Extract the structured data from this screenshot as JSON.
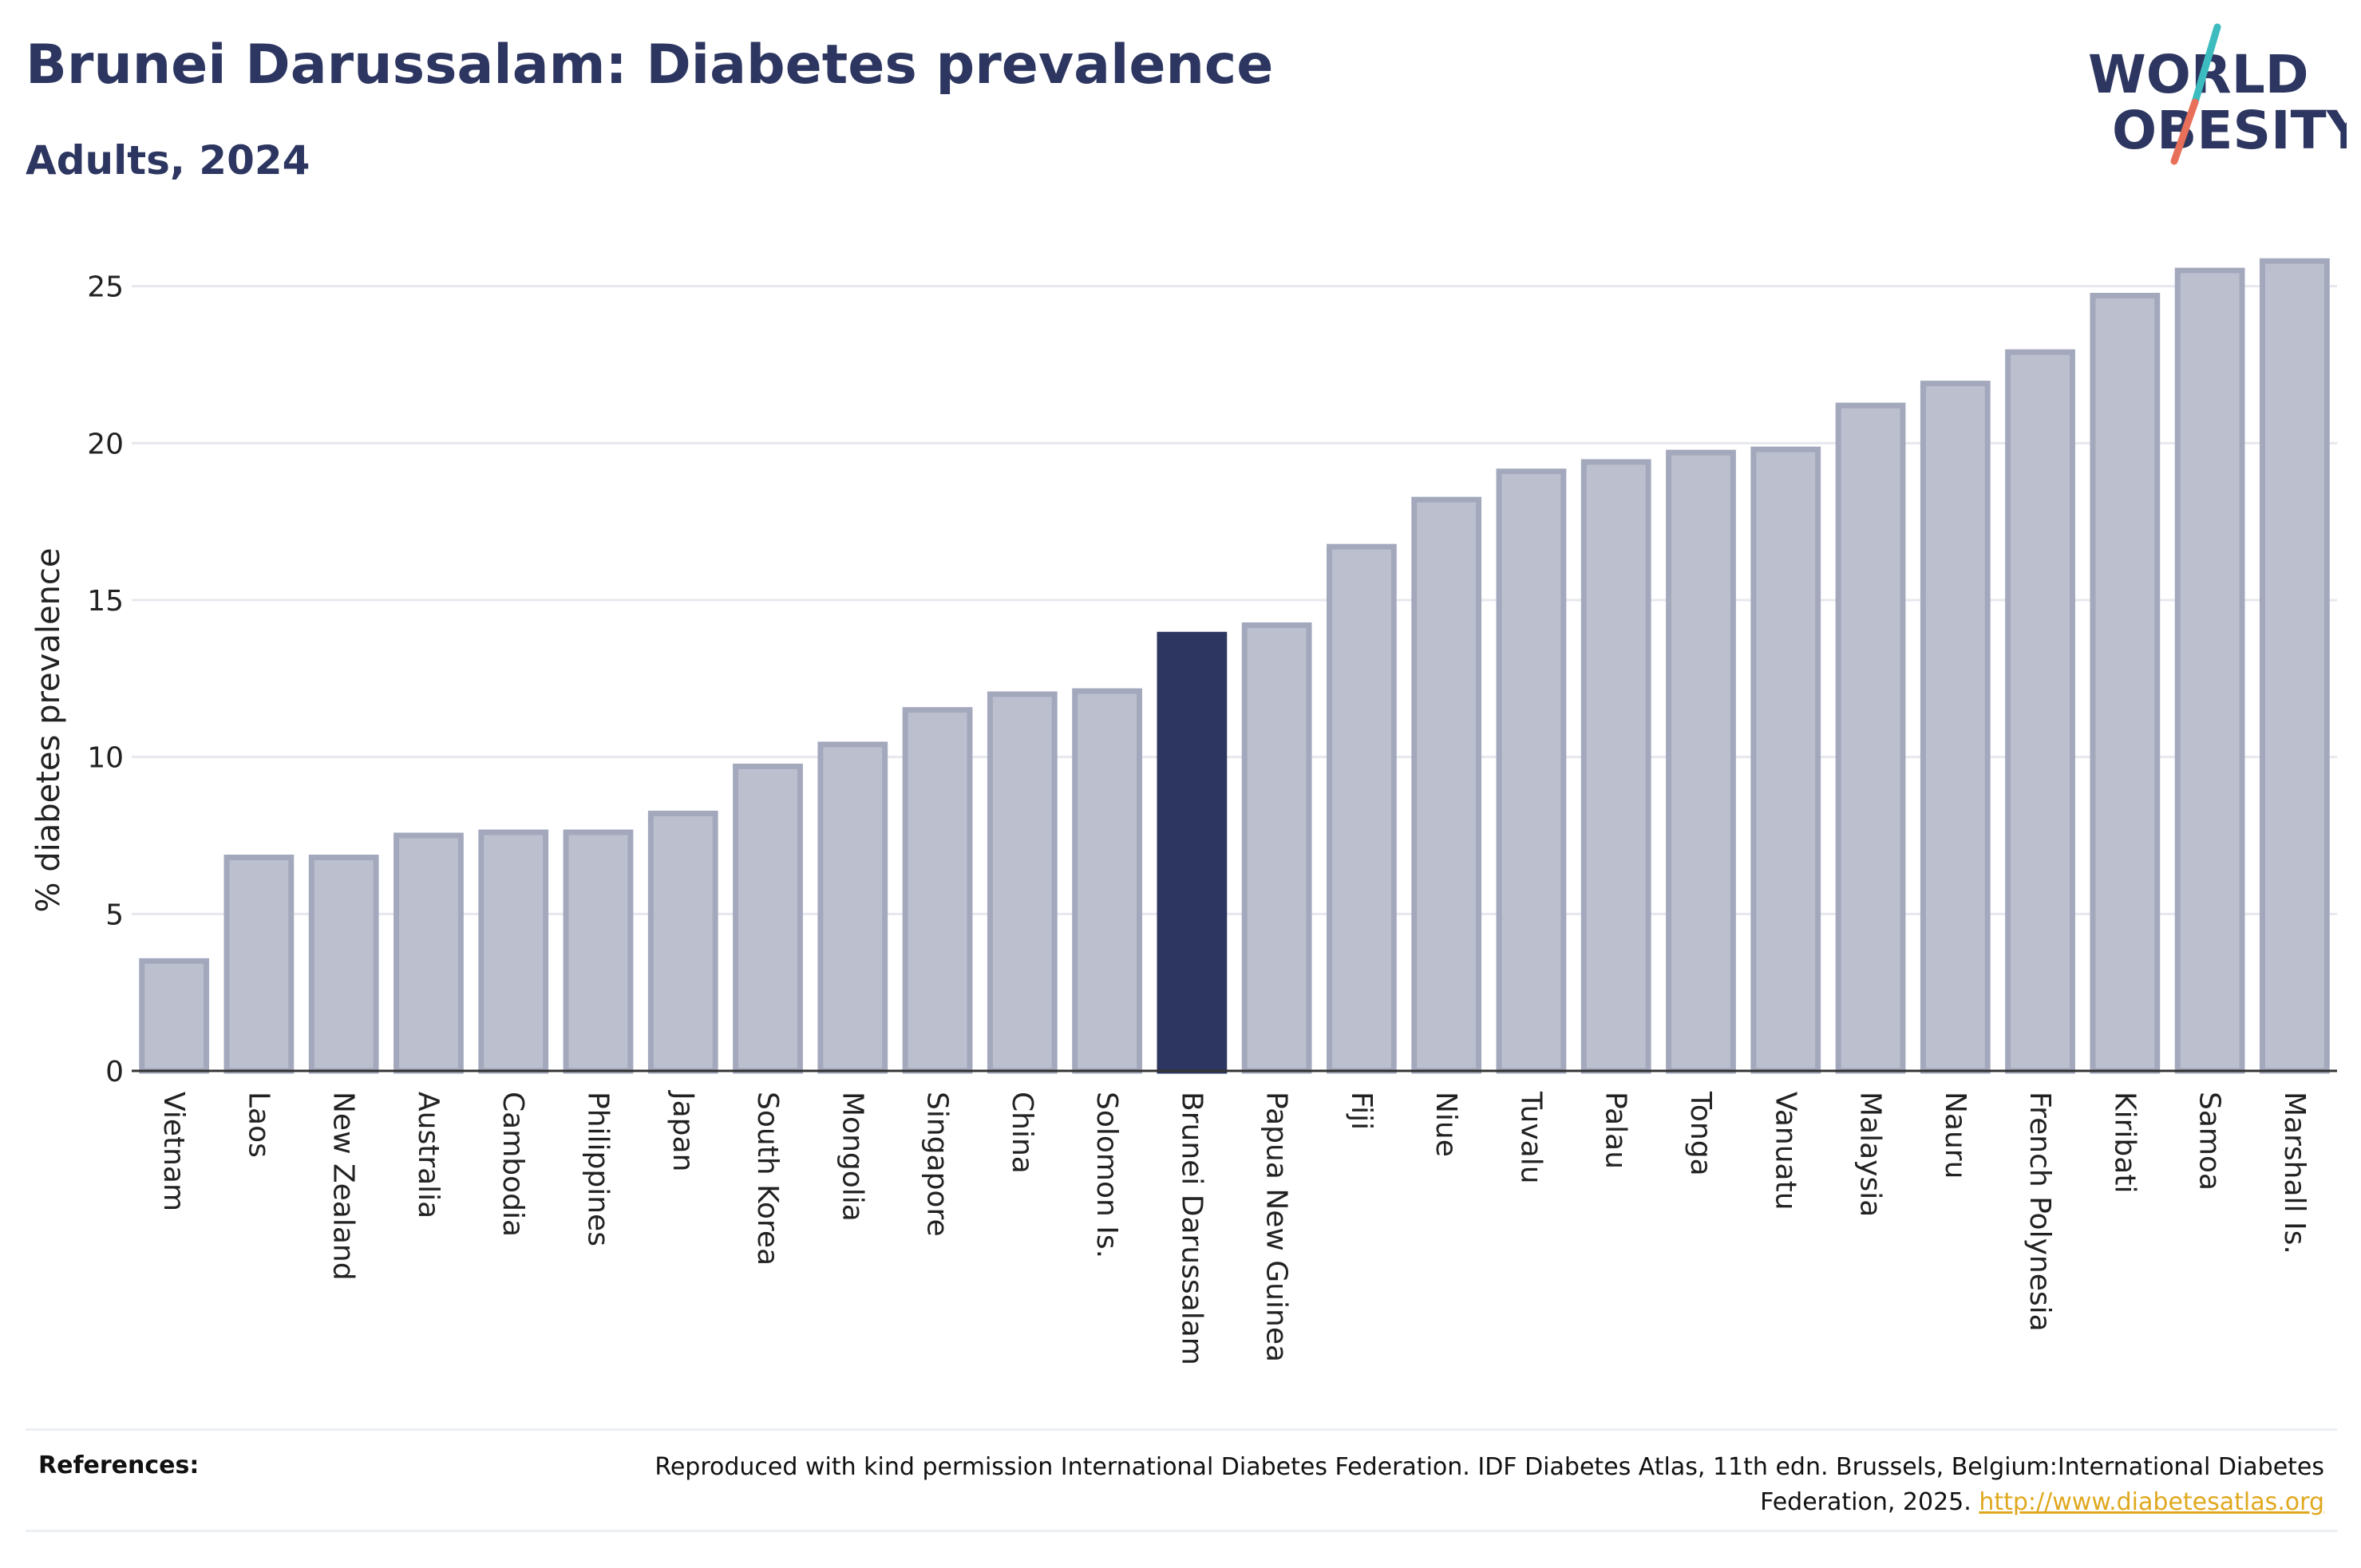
{
  "header": {
    "title": "Brunei Darussalam: Diabetes prevalence",
    "subtitle": "Adults, 2024"
  },
  "logo": {
    "line1": "WORLD",
    "line2": "OBESITY",
    "accent_teal": "#3dbcc0",
    "accent_red": "#e8705a"
  },
  "colors": {
    "bar": "#bcc0ce",
    "bar_stroke": "#a3a8bd",
    "highlight": "#2d3660",
    "grid": "#e6e8ee",
    "axis": "#333333"
  },
  "chart_data": {
    "type": "bar",
    "ylabel": "% diabetes prevalence",
    "xlabel": "",
    "ylim": [
      0,
      27
    ],
    "yticks": [
      0,
      5,
      10,
      15,
      20,
      25
    ],
    "grid": true,
    "highlight": "Brunei Darussalam",
    "categories": [
      "Vietnam",
      "Laos",
      "New Zealand",
      "Australia",
      "Cambodia",
      "Philippines",
      "Japan",
      "South Korea",
      "Mongolia",
      "Singapore",
      "China",
      "Solomon Is.",
      "Brunei Darussalam",
      "Papua New Guinea",
      "Fiji",
      "Niue",
      "Tuvalu",
      "Palau",
      "Tonga",
      "Vanuatu",
      "Malaysia",
      "Nauru",
      "French Polynesia",
      "Kiribati",
      "Samoa",
      "Marshall Is."
    ],
    "values": [
      3.5,
      6.8,
      6.8,
      7.5,
      7.6,
      7.6,
      8.2,
      9.7,
      10.4,
      11.5,
      12.0,
      12.1,
      13.9,
      14.2,
      16.7,
      18.2,
      19.1,
      19.4,
      19.7,
      19.8,
      21.2,
      21.9,
      22.9,
      24.7,
      25.5,
      25.8
    ]
  },
  "references": {
    "label": "References:",
    "text": "Reproduced with kind permission International Diabetes Federation. IDF Diabetes Atlas, 11th edn. Brussels, Belgium:International Diabetes Federation, 2025.",
    "link": "http://www.diabetesatlas.org"
  }
}
